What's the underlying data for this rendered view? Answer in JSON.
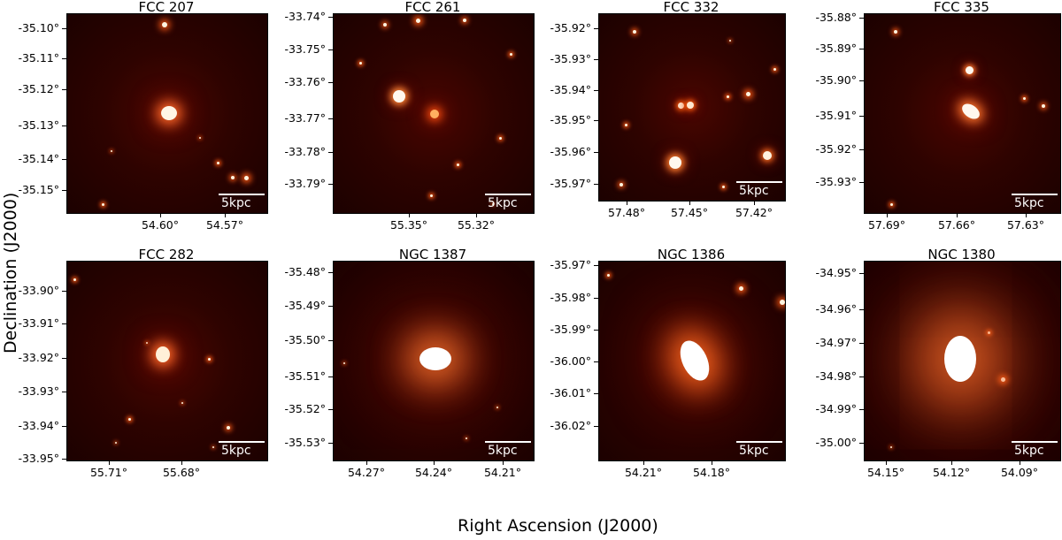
{
  "figure": {
    "xlabel": "Right Ascension (J2000)",
    "ylabel": "Declination (J2000)",
    "scalebar_label": "5kpc"
  },
  "panels": [
    {
      "title": "FCC 207",
      "yticks": [
        "-35.10°",
        "-35.11°",
        "-35.12°",
        "-35.13°",
        "-35.14°",
        "-35.15°"
      ],
      "xticks": [
        "54.60°",
        "54.57°"
      ]
    },
    {
      "title": "FCC 261",
      "yticks": [
        "-33.74°",
        "-33.75°",
        "-33.76°",
        "-33.77°",
        "-33.78°",
        "-33.79°"
      ],
      "xticks": [
        "55.35°",
        "55.32°"
      ]
    },
    {
      "title": "FCC 332",
      "yticks": [
        "-35.92°",
        "-35.93°",
        "-35.94°",
        "-35.95°",
        "-35.96°",
        "-35.97°"
      ],
      "xticks": [
        "57.48°",
        "57.45°",
        "57.42°"
      ]
    },
    {
      "title": "FCC 335",
      "yticks": [
        "-35.88°",
        "-35.89°",
        "-35.90°",
        "-35.91°",
        "-35.92°",
        "-35.93°"
      ],
      "xticks": [
        "57.69°",
        "57.66°",
        "57.63°"
      ]
    },
    {
      "title": "FCC 282",
      "yticks": [
        "-33.90°",
        "-33.91°",
        "-33.92°",
        "-33.93°",
        "-33.94°",
        "-33.95°"
      ],
      "xticks": [
        "55.71°",
        "55.68°"
      ]
    },
    {
      "title": "NGC 1387",
      "yticks": [
        "-35.48°",
        "-35.49°",
        "-35.50°",
        "-35.51°",
        "-35.52°",
        "-35.53°"
      ],
      "xticks": [
        "54.27°",
        "54.24°",
        "54.21°"
      ]
    },
    {
      "title": "NGC 1386",
      "yticks": [
        "-35.97°",
        "-35.98°",
        "-35.99°",
        "-36.00°",
        "-36.01°",
        "-36.02°"
      ],
      "xticks": [
        "54.21°",
        "54.18°"
      ]
    },
    {
      "title": "NGC 1380",
      "yticks": [
        "-34.95°",
        "-34.96°",
        "-34.97°",
        "-34.98°",
        "-34.99°",
        "-35.00°"
      ],
      "xticks": [
        "54.15°",
        "54.12°",
        "54.09°"
      ]
    }
  ]
}
